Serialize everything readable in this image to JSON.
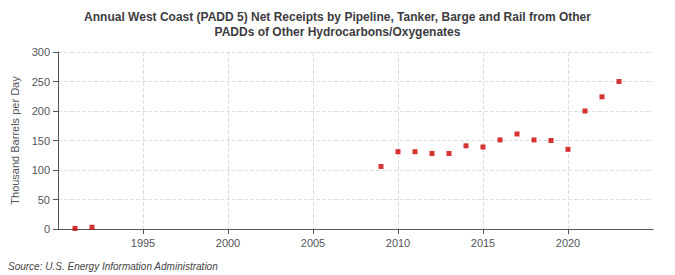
{
  "chart_data": {
    "type": "scatter",
    "title": "Annual West Coast (PADD 5) Net Receipts by Pipeline, Tanker, Barge and Rail from Other\nPADDs of Other Hydrocarbons/Oxygenates",
    "ylabel": "Thousand Barrels per Day",
    "annotations": [
      "Source: U.S. Energy Information Administration"
    ],
    "x": [
      1991,
      1992,
      2009,
      2010,
      2011,
      2012,
      2013,
      2014,
      2015,
      2016,
      2017,
      2018,
      2019,
      2020,
      2021,
      2022,
      2023
    ],
    "values": [
      1,
      3,
      106,
      131,
      131,
      128,
      128,
      141,
      139,
      151,
      161,
      151,
      150,
      135,
      200,
      224,
      250
    ],
    "color": "#cc0000",
    "marker": "square",
    "xlim": [
      1990.0,
      2025.0
    ],
    "xticks": [
      1995,
      2000,
      2005,
      2010,
      2015,
      2020
    ],
    "ylim": [
      0,
      300
    ],
    "yticks": [
      0,
      50,
      100,
      150,
      200,
      250,
      300
    ],
    "grid": true
  }
}
